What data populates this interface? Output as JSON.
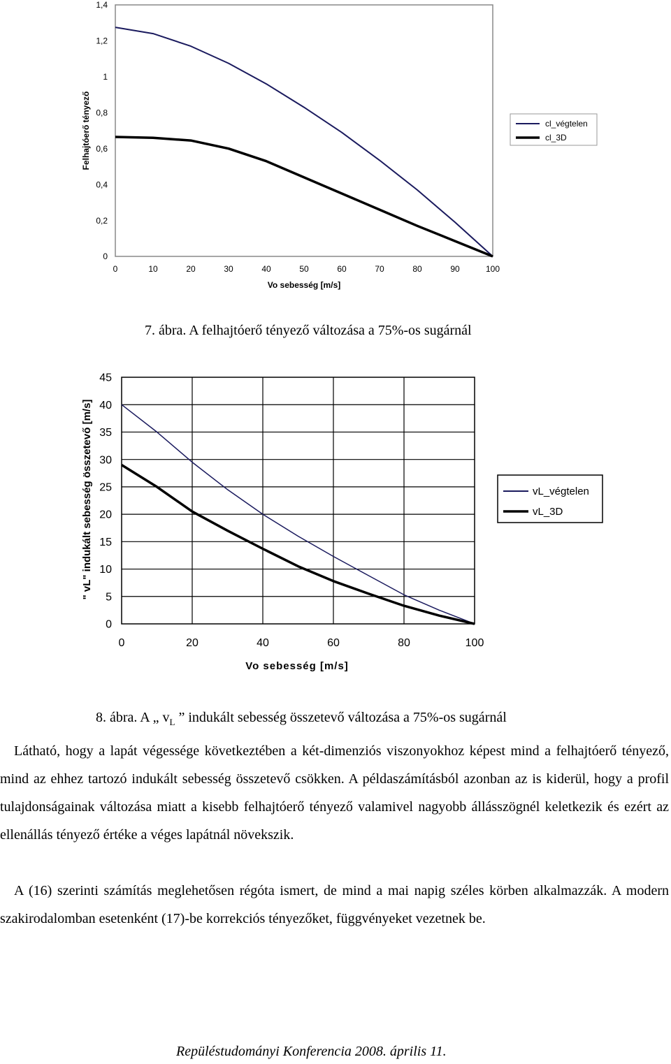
{
  "chart_data": [
    {
      "type": "line",
      "ylabel": "Felhajtóerő tényező",
      "xlabel": "Vo sebesség [m/s]",
      "xlim": [
        0,
        100
      ],
      "ylim": [
        0,
        1.4
      ],
      "x_ticks": [
        "0",
        "10",
        "20",
        "30",
        "40",
        "50",
        "60",
        "70",
        "80",
        "90",
        "100"
      ],
      "y_ticks": [
        "0",
        "0,2",
        "0,4",
        "0,6",
        "0,8",
        "1",
        "1,2",
        "1,4"
      ],
      "grid": false,
      "legend": "right",
      "series": [
        {
          "name": "cl_végtelen",
          "color": "#1a1a5e",
          "x": [
            0,
            10,
            20,
            30,
            40,
            50,
            60,
            70,
            80,
            90,
            100
          ],
          "y": [
            1.275,
            1.24,
            1.17,
            1.075,
            0.96,
            0.83,
            0.69,
            0.535,
            0.37,
            0.19,
            0.0
          ]
        },
        {
          "name": "cl_3D",
          "color": "#000000",
          "x": [
            0,
            10,
            20,
            30,
            40,
            50,
            60,
            70,
            80,
            90,
            100
          ],
          "y": [
            0.665,
            0.66,
            0.645,
            0.6,
            0.53,
            0.44,
            0.35,
            0.26,
            0.17,
            0.085,
            0.0
          ]
        }
      ]
    },
    {
      "type": "line",
      "ylabel": "\" vL\" indukált sebesség összetevő [m/s]",
      "xlabel": "Vo sebesség [m/s]",
      "xlim": [
        0,
        100
      ],
      "ylim": [
        0,
        45
      ],
      "x_ticks": [
        "0",
        "20",
        "40",
        "60",
        "80",
        "100"
      ],
      "y_ticks": [
        "0",
        "5",
        "10",
        "15",
        "20",
        "25",
        "30",
        "35",
        "40",
        "45"
      ],
      "grid": true,
      "legend": "right",
      "series": [
        {
          "name": "vL_végtelen",
          "color": "#1a1a5e",
          "x": [
            0,
            10,
            20,
            30,
            40,
            50,
            60,
            70,
            80,
            90,
            100
          ],
          "y": [
            40,
            35,
            29.5,
            24.5,
            20,
            16,
            12.3,
            8.8,
            5.3,
            2.5,
            0
          ]
        },
        {
          "name": "vL_3D",
          "color": "#000000",
          "x": [
            0,
            10,
            20,
            30,
            40,
            50,
            60,
            70,
            80,
            90,
            100
          ],
          "y": [
            29,
            25,
            20.5,
            17,
            13.7,
            10.5,
            7.8,
            5.5,
            3.3,
            1.5,
            0
          ]
        }
      ]
    }
  ],
  "caption1": "7. ábra. A felhajtóerő tényező változása a 75%-os sugárnál",
  "caption2": {
    "prefix": "8. ábra. A „ v",
    "sub": "L",
    "suffix": " ” indukált sebesség összetevő változása a 75%-os sugárnál"
  },
  "paragraphs": [
    "Látható, hogy a lapát végessége következtében a két-dimenziós viszonyokhoz képest mind a felhajtóerő tényező, mind az ehhez tartozó indukált sebesség összetevő csökken. A példaszámításból azonban az is kiderül, hogy a profil tulajdonságainak változása miatt a kisebb felhajtóerő tényező valamivel nagyobb állásszögnél keletkezik és ezért az ellenállás tényező értéke a véges lapátnál növekszik.",
    "A (16) szerinti számítás meglehetősen régóta ismert, de mind a mai napig széles körben alkalmazzák. A modern szakirodalomban esetenként (17)-be korrekciós tényezőket, függvényeket vezetnek be."
  ],
  "footer": "Repüléstudományi Konferencia 2008. április 11."
}
